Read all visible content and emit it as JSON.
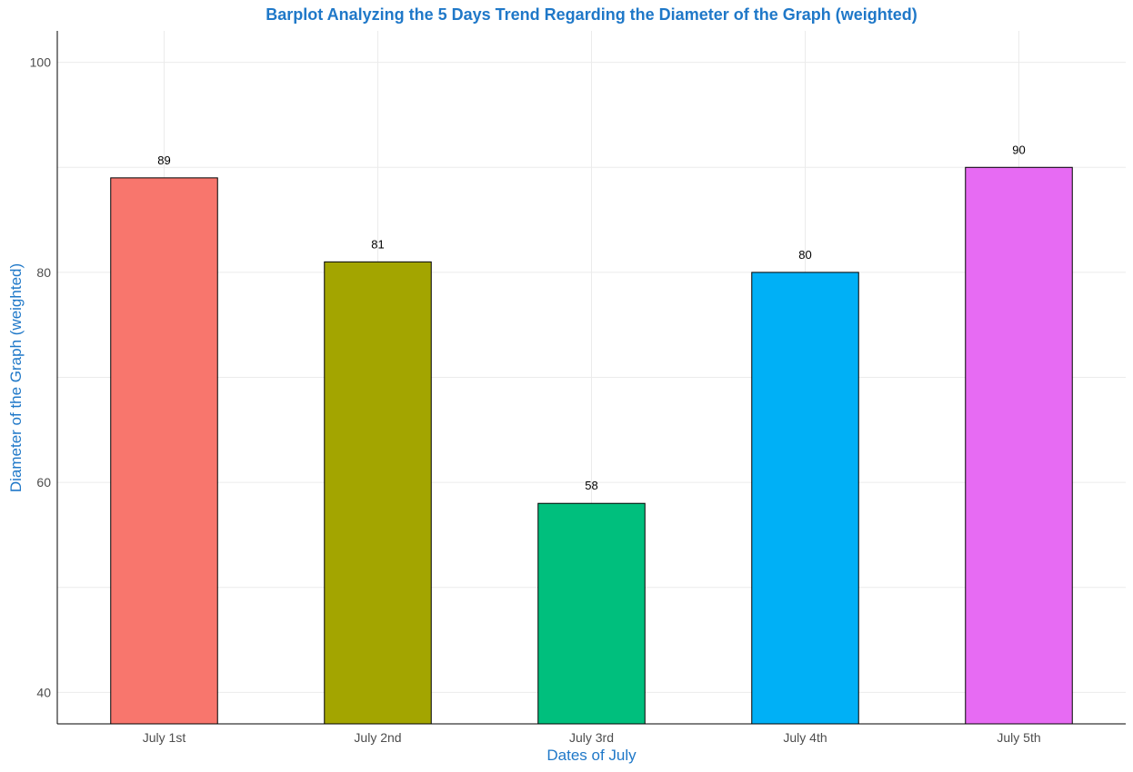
{
  "chart_data": {
    "type": "bar",
    "title": "Barplot Analyzing the 5 Days Trend Regarding the Diameter of the Graph (weighted)",
    "xlabel": "Dates of July",
    "ylabel": "Diameter of the Graph (weighted)",
    "categories": [
      "July 1st",
      "July 2nd",
      "July 3rd",
      "July 4th",
      "July 5th"
    ],
    "values": [
      89,
      81,
      58,
      80,
      90
    ],
    "data_labels": [
      "89",
      "81",
      "58",
      "80",
      "90"
    ],
    "colors": [
      "#F8766D",
      "#A3A500",
      "#00BF7D",
      "#00B0F6",
      "#E76BF3"
    ],
    "ylim": [
      37,
      103
    ],
    "y_ticks": [
      40,
      60,
      80,
      100
    ],
    "grid": true,
    "legend": "none"
  }
}
